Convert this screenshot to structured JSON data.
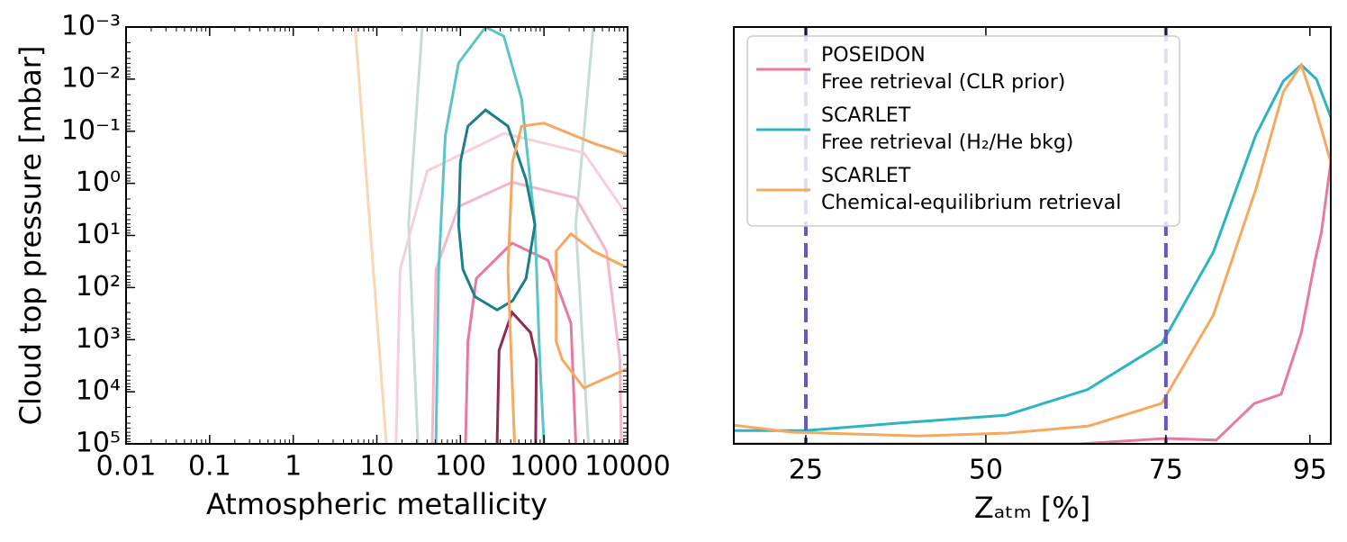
{
  "chart_data": [
    {
      "type": "contour",
      "xlabel": "Atmospheric metallicity",
      "ylabel": "Cloud top pressure [mbar]",
      "xscale": "log",
      "yscale": "log",
      "xlim": [
        0.01,
        10000
      ],
      "ylim": [
        100000,
        0.001
      ],
      "xticks": [
        0.01,
        0.1,
        1,
        10,
        100,
        1000,
        10000
      ],
      "yticks": [
        {
          "value": 0.001,
          "label": "10⁻³"
        },
        {
          "value": 0.01,
          "label": "10⁻²"
        },
        {
          "value": 0.1,
          "label": "10⁻¹"
        },
        {
          "value": 1,
          "label": "10⁰"
        },
        {
          "value": 10,
          "label": "10¹"
        },
        {
          "value": 100,
          "label": "10²"
        },
        {
          "value": 1000,
          "label": "10³"
        },
        {
          "value": 10000,
          "label": "10⁴"
        },
        {
          "value": 100000,
          "label": "10⁵"
        }
      ],
      "contours": [
        {
          "color": "#c7dcd8",
          "x": [
            35,
            24,
            31
          ],
          "y": [
            0.001,
            6.2,
            100000
          ]
        },
        {
          "color": "#c7dcd8",
          "x": [
            3900,
            2400,
            3400
          ],
          "y": [
            0.001,
            6.2,
            100000
          ]
        },
        {
          "color": "#f9d6b4",
          "x": [
            5.5,
            13
          ],
          "y": [
            0.001,
            100000
          ]
        },
        {
          "color": "#f7cfdc",
          "x": [
            17,
            19,
            40,
            330,
            3000,
            10000
          ],
          "y": [
            100000,
            45,
            0.58,
            0.11,
            0.26,
            4.2
          ]
        },
        {
          "color": "#f4b6ca",
          "x": [
            46,
            51,
            95,
            415,
            2400,
            5600,
            8100,
            8400
          ],
          "y": [
            100000,
            45,
            2.8,
            0.95,
            1.9,
            20,
            2400,
            100000
          ]
        },
        {
          "color": "#e8799f",
          "x": [
            115,
            123,
            155,
            415,
            1120,
            2100,
            2400
          ],
          "y": [
            100000,
            1070,
            67,
            14,
            30,
            490,
            100000
          ]
        },
        {
          "color": "#8e2a4f",
          "x": [
            275,
            290,
            415,
            690,
            810,
            795
          ],
          "y": [
            100000,
            1600,
            300,
            730,
            2400,
            100000
          ]
        },
        {
          "color": "#5cc4c8",
          "x": [
            51,
            55,
            66,
            95,
            200,
            330,
            540,
            780,
            890,
            1000
          ],
          "y": [
            100000,
            45,
            0.12,
            0.0049,
            0.001,
            0.0015,
            0.024,
            6.2,
            2400,
            100000
          ]
        },
        {
          "color": "#1a7f8a",
          "x": [
            100,
            123,
            200,
            370,
            610,
            780,
            610,
            420,
            275,
            150,
            107,
            95,
            100
          ],
          "y": [
            0.39,
            0.08,
            0.039,
            0.08,
            0.85,
            6.2,
            67,
            180,
            270,
            150,
            45,
            6.2,
            0.39
          ]
        },
        {
          "color": "#f5a860",
          "x": [
            445,
            370,
            420,
            540,
            1000,
            3900,
            10000
          ],
          "y": [
            100000,
            45,
            0.39,
            0.08,
            0.07,
            0.17,
            0.28
          ]
        },
        {
          "color": "#f5a860",
          "x": [
            10000,
            3900,
            2100,
            1400,
            1400,
            1650,
            3000,
            10000
          ],
          "y": [
            42,
            20,
            9.3,
            20,
            1070,
            2400,
            8500,
            3600
          ]
        }
      ]
    },
    {
      "type": "line",
      "xlabel": "Zₐₜₘ [%]",
      "xlim": [
        15,
        97.9
      ],
      "ylim": [
        0,
        1
      ],
      "xticks": [
        25,
        50,
        75,
        95
      ],
      "vlines": {
        "values": [
          25,
          75
        ],
        "color": "#6655cc"
      },
      "legend": "upper left",
      "series": [
        {
          "name": "POSEIDON",
          "description": "Free retrieval (CLR prior)",
          "color": "#e8799f",
          "x": [
            15,
            63,
            75,
            82,
            87.3,
            91,
            93.8,
            95.7,
            96.6,
            97.9
          ],
          "values": [
            0,
            0,
            0.013,
            0.009,
            0.097,
            0.119,
            0.266,
            0.438,
            0.508,
            0.676
          ]
        },
        {
          "name": "SCARLET",
          "description": "Free retrieval (H₂/He bkg)",
          "color": "#2bb5c0",
          "x": [
            15,
            25,
            38,
            52.8,
            64.1,
            74.4,
            81.6,
            87.5,
            91.3,
            93.8,
            95.9,
            97.9
          ],
          "values": [
            0.032,
            0.032,
            0.05,
            0.069,
            0.13,
            0.24,
            0.46,
            0.741,
            0.87,
            0.909,
            0.875,
            0.784
          ]
        },
        {
          "name": "SCARLET",
          "description": "Chemical-equilibrium retrieval",
          "color": "#f5a860",
          "x": [
            15,
            23,
            40.5,
            53.1,
            64.3,
            74.4,
            81.6,
            87.5,
            91.3,
            93.8,
            95.4,
            97.9
          ],
          "values": [
            0.045,
            0.028,
            0.019,
            0.026,
            0.043,
            0.097,
            0.309,
            0.611,
            0.844,
            0.909,
            0.827,
            0.676
          ]
        }
      ]
    }
  ]
}
